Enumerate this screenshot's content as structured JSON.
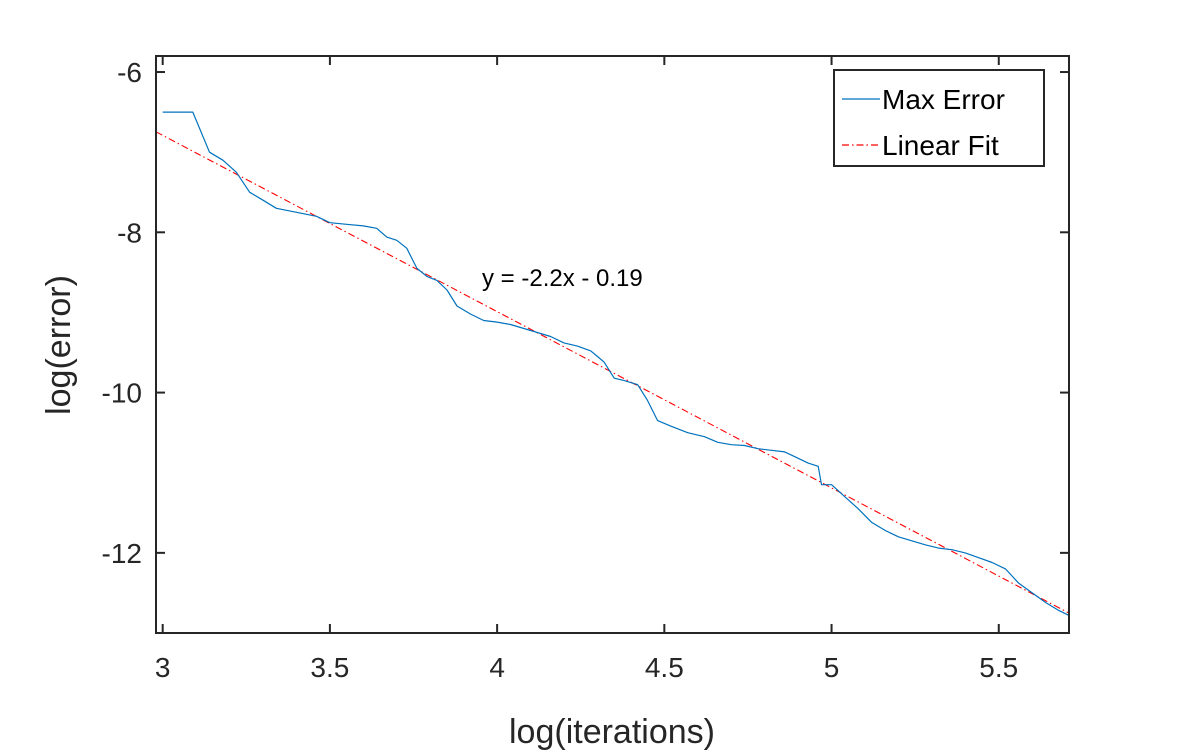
{
  "chart_data": {
    "type": "line",
    "xlabel": "log(iterations)",
    "ylabel": "log(error)",
    "xlim": [
      2.98,
      5.71
    ],
    "ylim": [
      -13.0,
      -5.8
    ],
    "xticks": [
      3,
      3.5,
      4,
      4.5,
      5,
      5.5
    ],
    "xtick_labels": [
      "3",
      "3.5",
      "4",
      "4.5",
      "5",
      "5.5"
    ],
    "yticks": [
      -6,
      -8,
      -10,
      -12
    ],
    "ytick_labels": [
      "-6",
      "-8",
      "-10",
      "-12"
    ],
    "grid": false,
    "legend_position": "top-right",
    "annotation": {
      "text": "y = -2.2x - 0.19",
      "x": 3.96,
      "y": -8.55
    },
    "series": [
      {
        "name": "Max Error",
        "color": "#0072BD",
        "style": "solid",
        "points": [
          [
            3.0,
            -6.5
          ],
          [
            3.09,
            -6.5
          ],
          [
            3.14,
            -7.0
          ],
          [
            3.18,
            -7.1
          ],
          [
            3.22,
            -7.25
          ],
          [
            3.26,
            -7.5
          ],
          [
            3.3,
            -7.6
          ],
          [
            3.34,
            -7.7
          ],
          [
            3.4,
            -7.75
          ],
          [
            3.46,
            -7.8
          ],
          [
            3.5,
            -7.88
          ],
          [
            3.55,
            -7.9
          ],
          [
            3.6,
            -7.92
          ],
          [
            3.64,
            -7.95
          ],
          [
            3.67,
            -8.06
          ],
          [
            3.7,
            -8.1
          ],
          [
            3.73,
            -8.2
          ],
          [
            3.76,
            -8.45
          ],
          [
            3.79,
            -8.55
          ],
          [
            3.82,
            -8.6
          ],
          [
            3.85,
            -8.72
          ],
          [
            3.88,
            -8.92
          ],
          [
            3.92,
            -9.02
          ],
          [
            3.96,
            -9.1
          ],
          [
            4.0,
            -9.12
          ],
          [
            4.04,
            -9.15
          ],
          [
            4.08,
            -9.2
          ],
          [
            4.12,
            -9.25
          ],
          [
            4.16,
            -9.3
          ],
          [
            4.2,
            -9.38
          ],
          [
            4.24,
            -9.42
          ],
          [
            4.28,
            -9.48
          ],
          [
            4.3,
            -9.55
          ],
          [
            4.32,
            -9.62
          ],
          [
            4.35,
            -9.82
          ],
          [
            4.38,
            -9.85
          ],
          [
            4.42,
            -9.9
          ],
          [
            4.45,
            -10.1
          ],
          [
            4.48,
            -10.35
          ],
          [
            4.52,
            -10.42
          ],
          [
            4.57,
            -10.5
          ],
          [
            4.62,
            -10.55
          ],
          [
            4.66,
            -10.62
          ],
          [
            4.7,
            -10.65
          ],
          [
            4.74,
            -10.66
          ],
          [
            4.78,
            -10.7
          ],
          [
            4.82,
            -10.72
          ],
          [
            4.86,
            -10.74
          ],
          [
            4.89,
            -10.8
          ],
          [
            4.93,
            -10.88
          ],
          [
            4.96,
            -10.92
          ],
          [
            4.97,
            -11.15
          ],
          [
            5.0,
            -11.15
          ],
          [
            5.04,
            -11.3
          ],
          [
            5.08,
            -11.45
          ],
          [
            5.12,
            -11.62
          ],
          [
            5.16,
            -11.72
          ],
          [
            5.2,
            -11.8
          ],
          [
            5.24,
            -11.85
          ],
          [
            5.28,
            -11.9
          ],
          [
            5.32,
            -11.94
          ],
          [
            5.36,
            -11.96
          ],
          [
            5.4,
            -12.0
          ],
          [
            5.44,
            -12.06
          ],
          [
            5.48,
            -12.12
          ],
          [
            5.52,
            -12.2
          ],
          [
            5.56,
            -12.38
          ],
          [
            5.6,
            -12.5
          ],
          [
            5.64,
            -12.62
          ],
          [
            5.68,
            -12.72
          ],
          [
            5.71,
            -12.78
          ]
        ]
      },
      {
        "name": "Linear Fit",
        "color": "#FF0000",
        "style": "dash-dot",
        "points": [
          [
            2.98,
            -6.746
          ],
          [
            5.71,
            -12.752
          ]
        ]
      }
    ]
  }
}
